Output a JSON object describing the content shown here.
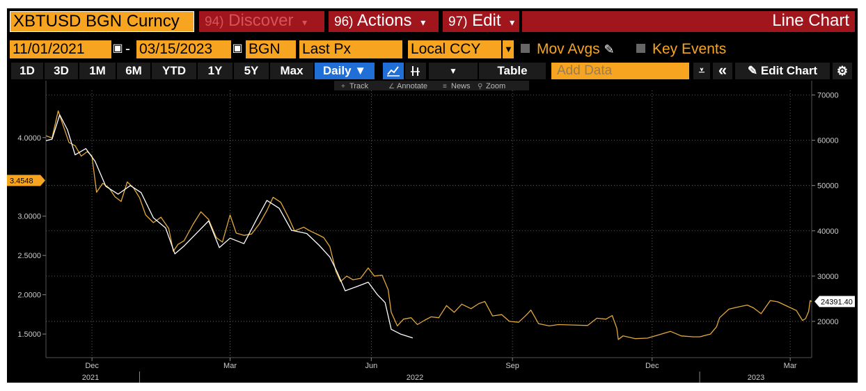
{
  "header": {
    "ticker": "XBTUSD BGN Curncy",
    "menus": [
      {
        "num": "94)",
        "label": "Discover",
        "caret": "▾",
        "dim": true
      },
      {
        "num": "96)",
        "label": "Actions",
        "caret": "▾",
        "dim": false
      },
      {
        "num": "97)",
        "label": "Edit",
        "caret": "▾",
        "dim": false
      }
    ],
    "title": "Line Chart"
  },
  "controls": {
    "start_date": "11/01/2021",
    "dash": "-",
    "end_date": "03/15/2023",
    "source": "BGN",
    "field": "Last Px",
    "currency": "Local CCY",
    "mov_avgs": "Mov Avgs",
    "key_events": "Key Events"
  },
  "toolbar": {
    "ranges": [
      "1D",
      "3D",
      "1M",
      "6M",
      "YTD",
      "1Y",
      "5Y",
      "Max"
    ],
    "periodicity": "Daily ▼",
    "table": "Table",
    "add_data_placeholder": "Add Data",
    "edit_chart": "Edit Chart"
  },
  "chart_tools": [
    "Track",
    "Annotate",
    "News",
    "Zoom"
  ],
  "colors": {
    "bitcoin": "#e4a93c",
    "other_series": "#ffffff",
    "accent_orange": "#f7a521",
    "bar_red": "#a1151d",
    "toolbar_blue": "#1f6fd6"
  },
  "chart_data": {
    "type": "line",
    "x_ticks": [
      "Dec",
      "Mar",
      "Jun",
      "Sep",
      "Dec",
      "Mar"
    ],
    "x_years": [
      "2021",
      "2022",
      "2023"
    ],
    "left_axis": {
      "ticks": [
        "1.5000",
        "2.0000",
        "2.5000",
        "3.0000",
        "4.0000"
      ],
      "range": [
        1.2,
        4.6
      ],
      "last_value_label": "3.4548"
    },
    "right_axis": {
      "ticks": [
        "20000",
        "30000",
        "40000",
        "50000",
        "60000",
        "70000"
      ],
      "range": [
        12000,
        71000
      ],
      "last_value_label": "24391.40"
    },
    "series": [
      {
        "axis": "right",
        "color": "#e4a93c",
        "points": [
          [
            "2021-11-01",
            61000
          ],
          [
            "2021-11-05",
            60500
          ],
          [
            "2021-11-09",
            66500
          ],
          [
            "2021-11-12",
            63500
          ],
          [
            "2021-11-16",
            59500
          ],
          [
            "2021-11-20",
            58800
          ],
          [
            "2021-11-24",
            56500
          ],
          [
            "2021-11-28",
            57500
          ],
          [
            "2021-12-01",
            56500
          ],
          [
            "2021-12-04",
            48500
          ],
          [
            "2021-12-08",
            50500
          ],
          [
            "2021-12-12",
            49500
          ],
          [
            "2021-12-16",
            47500
          ],
          [
            "2021-12-20",
            46500
          ],
          [
            "2021-12-24",
            50800
          ],
          [
            "2021-12-28",
            49500
          ],
          [
            "2022-01-01",
            47300
          ],
          [
            "2022-01-05",
            43500
          ],
          [
            "2022-01-10",
            41800
          ],
          [
            "2022-01-15",
            43000
          ],
          [
            "2022-01-20",
            40500
          ],
          [
            "2022-01-23",
            35500
          ],
          [
            "2022-01-26",
            37000
          ],
          [
            "2022-01-30",
            37800
          ],
          [
            "2022-02-05",
            41500
          ],
          [
            "2022-02-10",
            44200
          ],
          [
            "2022-02-15",
            42500
          ],
          [
            "2022-02-20",
            38500
          ],
          [
            "2022-02-24",
            37500
          ],
          [
            "2022-03-01",
            43500
          ],
          [
            "2022-03-05",
            39500
          ],
          [
            "2022-03-10",
            39000
          ],
          [
            "2022-03-15",
            39300
          ],
          [
            "2022-03-20",
            41500
          ],
          [
            "2022-03-25",
            44500
          ],
          [
            "2022-03-29",
            47400
          ],
          [
            "2022-04-03",
            46300
          ],
          [
            "2022-04-08",
            43000
          ],
          [
            "2022-04-12",
            40000
          ],
          [
            "2022-04-18",
            40800
          ],
          [
            "2022-04-22",
            40000
          ],
          [
            "2022-04-27",
            39200
          ],
          [
            "2022-05-01",
            38500
          ],
          [
            "2022-05-05",
            36500
          ],
          [
            "2022-05-09",
            31000
          ],
          [
            "2022-05-12",
            28800
          ],
          [
            "2022-05-16",
            30000
          ],
          [
            "2022-05-20",
            29200
          ],
          [
            "2022-05-25",
            29500
          ],
          [
            "2022-05-30",
            31800
          ],
          [
            "2022-06-03",
            30000
          ],
          [
            "2022-06-08",
            30200
          ],
          [
            "2022-06-12",
            27000
          ],
          [
            "2022-06-14",
            22000
          ],
          [
            "2022-06-18",
            19000
          ],
          [
            "2022-06-22",
            20500
          ],
          [
            "2022-06-27",
            20800
          ],
          [
            "2022-07-01",
            19300
          ],
          [
            "2022-07-06",
            20300
          ],
          [
            "2022-07-10",
            21000
          ],
          [
            "2022-07-15",
            20800
          ],
          [
            "2022-07-20",
            23500
          ],
          [
            "2022-07-25",
            22000
          ],
          [
            "2022-07-30",
            23800
          ],
          [
            "2022-08-05",
            22800
          ],
          [
            "2022-08-10",
            23900
          ],
          [
            "2022-08-14",
            24400
          ],
          [
            "2022-08-19",
            21200
          ],
          [
            "2022-08-25",
            21500
          ],
          [
            "2022-08-30",
            20000
          ],
          [
            "2022-09-05",
            19800
          ],
          [
            "2022-09-10",
            21400
          ],
          [
            "2022-09-13",
            22500
          ],
          [
            "2022-09-18",
            19500
          ],
          [
            "2022-09-25",
            19000
          ],
          [
            "2022-10-01",
            19300
          ],
          [
            "2022-10-10",
            19200
          ],
          [
            "2022-10-20",
            19100
          ],
          [
            "2022-10-26",
            20700
          ],
          [
            "2022-11-01",
            20500
          ],
          [
            "2022-11-05",
            21300
          ],
          [
            "2022-11-08",
            18500
          ],
          [
            "2022-11-09",
            16000
          ],
          [
            "2022-11-12",
            16800
          ],
          [
            "2022-11-20",
            16200
          ],
          [
            "2022-11-28",
            16300
          ],
          [
            "2022-12-05",
            17000
          ],
          [
            "2022-12-13",
            17800
          ],
          [
            "2022-12-20",
            16800
          ],
          [
            "2022-12-28",
            16600
          ],
          [
            "2023-01-01",
            16600
          ],
          [
            "2023-01-08",
            17200
          ],
          [
            "2023-01-12",
            18800
          ],
          [
            "2023-01-14",
            20800
          ],
          [
            "2023-01-20",
            22700
          ],
          [
            "2023-01-25",
            23100
          ],
          [
            "2023-02-01",
            23600
          ],
          [
            "2023-02-05",
            23000
          ],
          [
            "2023-02-10",
            21700
          ],
          [
            "2023-02-16",
            24600
          ],
          [
            "2023-02-21",
            24300
          ],
          [
            "2023-02-28",
            23200
          ],
          [
            "2023-03-05",
            22400
          ],
          [
            "2023-03-09",
            20200
          ],
          [
            "2023-03-11",
            20600
          ],
          [
            "2023-03-13",
            22200
          ],
          [
            "2023-03-14",
            24600
          ],
          [
            "2023-03-15",
            24391.4
          ]
        ]
      },
      {
        "axis": "left",
        "color": "#ffffff",
        "points": [
          [
            "2021-11-01",
            3.96
          ],
          [
            "2021-11-05",
            3.98
          ],
          [
            "2021-11-10",
            4.29
          ],
          [
            "2021-11-15",
            4.1
          ],
          [
            "2021-11-20",
            3.78
          ],
          [
            "2021-11-27",
            3.86
          ],
          [
            "2021-12-03",
            3.7
          ],
          [
            "2021-12-10",
            3.38
          ],
          [
            "2021-12-18",
            3.28
          ],
          [
            "2021-12-26",
            3.39
          ],
          [
            "2022-01-02",
            3.3
          ],
          [
            "2022-01-10",
            2.98
          ],
          [
            "2022-01-18",
            2.85
          ],
          [
            "2022-01-24",
            2.52
          ],
          [
            "2022-01-30",
            2.62
          ],
          [
            "2022-02-08",
            2.8
          ],
          [
            "2022-02-15",
            2.94
          ],
          [
            "2022-02-22",
            2.6
          ],
          [
            "2022-03-01",
            2.72
          ],
          [
            "2022-03-10",
            2.65
          ],
          [
            "2022-03-18",
            2.95
          ],
          [
            "2022-03-25",
            3.2
          ],
          [
            "2022-04-02",
            3.1
          ],
          [
            "2022-04-10",
            2.82
          ],
          [
            "2022-04-20",
            2.78
          ],
          [
            "2022-04-28",
            2.63
          ],
          [
            "2022-05-05",
            2.48
          ],
          [
            "2022-05-10",
            2.28
          ],
          [
            "2022-05-15",
            2.05
          ],
          [
            "2022-05-22",
            2.1
          ],
          [
            "2022-05-30",
            2.16
          ],
          [
            "2022-06-05",
            2.0
          ],
          [
            "2022-06-10",
            1.9
          ],
          [
            "2022-06-14",
            1.56
          ],
          [
            "2022-06-20",
            1.5
          ],
          [
            "2022-06-28",
            1.45
          ]
        ]
      }
    ]
  }
}
